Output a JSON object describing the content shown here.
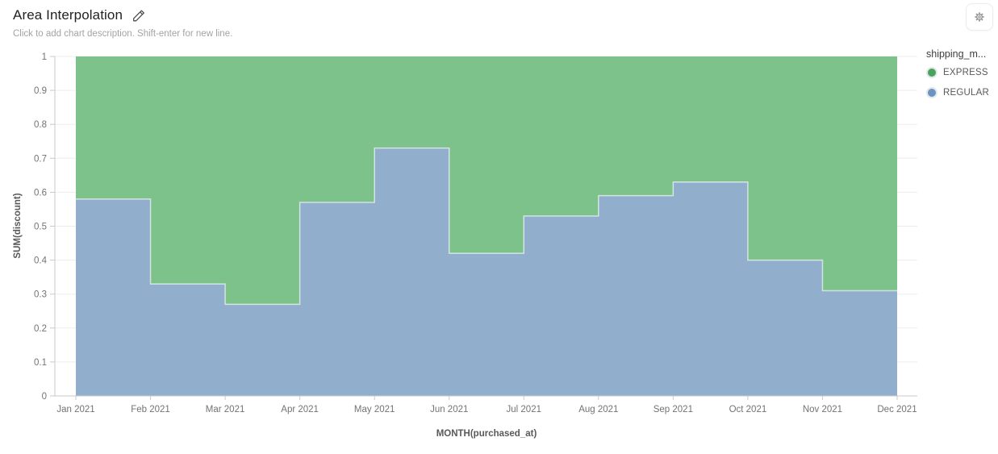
{
  "header": {
    "title": "Area Interpolation",
    "subtitle": "Click to add chart description. Shift-enter for new line.",
    "edit_icon": "pencil-icon",
    "settings_icon": "gear-icon"
  },
  "legend": {
    "title": "shipping_m...",
    "items": [
      {
        "label": "EXPRESS",
        "color": "#48a35c"
      },
      {
        "label": "REGULAR",
        "color": "#6d93c1"
      }
    ]
  },
  "chart_data": {
    "type": "area",
    "interpolation": "step-after",
    "stacked": true,
    "title": "Area Interpolation",
    "xlabel": "MONTH(purchased_at)",
    "ylabel": "SUM(discount)",
    "x_labels": [
      "Jan 2021",
      "Feb 2021",
      "Mar 2021",
      "Apr 2021",
      "May 2021",
      "Jun 2021",
      "Jul 2021",
      "Aug 2021",
      "Sep 2021",
      "Oct 2021",
      "Nov 2021",
      "Dec 2021"
    ],
    "y_ticks": [
      "1",
      "0.9",
      "0.8",
      "0.7",
      "0.6",
      "0.5",
      "0.4",
      "0.3",
      "0.2",
      "0.1",
      "0"
    ],
    "ylim": [
      0,
      1
    ],
    "grid": "horizontal",
    "legend_position": "right",
    "series": [
      {
        "name": "REGULAR",
        "fill": "#92aecd",
        "values": [
          0.58,
          0.33,
          0.27,
          0.57,
          0.73,
          0.42,
          0.53,
          0.59,
          0.63,
          0.4,
          0.31,
          0.31
        ]
      },
      {
        "name": "EXPRESS",
        "fill": "#7ec28b",
        "values": [
          0.42,
          0.67,
          0.73,
          0.43,
          0.27,
          0.58,
          0.47,
          0.41,
          0.37,
          0.6,
          0.69,
          0.69
        ]
      }
    ]
  }
}
